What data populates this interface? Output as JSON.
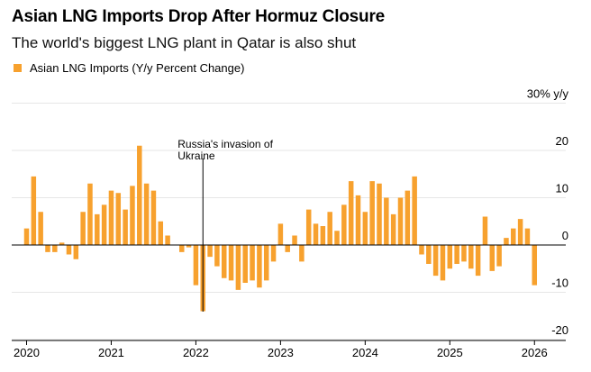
{
  "chart_data": {
    "type": "bar",
    "title": "Asian LNG Imports Drop After Hormuz Closure",
    "subtitle": "The world's biggest LNG plant in Qatar is also shut",
    "legend": [
      {
        "name": "Asian LNG Imports (Y/y Percent Change)",
        "color": "#f7a12e"
      }
    ],
    "series": [
      {
        "name": "Asian LNG Imports (Y/y Percent Change)",
        "start": "2020-01",
        "values": [
          3.5,
          14.5,
          7,
          -1.5,
          -1.5,
          0.5,
          -2,
          -3,
          7,
          13,
          6.5,
          8.5,
          11.5,
          11,
          7.5,
          12.5,
          21,
          13,
          11.5,
          5,
          2,
          0,
          -1.5,
          -0.5,
          -8.5,
          -14,
          -2.5,
          -4.5,
          -7,
          -7.5,
          -9.5,
          -8,
          -7.5,
          -9,
          -7.5,
          -3.5,
          4.5,
          -1.5,
          2,
          -3.5,
          7.5,
          4.5,
          4,
          7,
          3,
          8.5,
          13.5,
          10.5,
          7,
          13.5,
          13,
          10,
          6.5,
          10,
          11.5,
          14.5,
          -2,
          -4,
          -6.5,
          -7.5,
          -5,
          -4,
          -3.5,
          -5,
          -6.5,
          6,
          -5.5,
          -4.5,
          1.5,
          3.5,
          5.5,
          3.5,
          -8.5
        ]
      }
    ],
    "x_ticks": [
      {
        "label": "2020",
        "value": "2020-01"
      },
      {
        "label": "2021",
        "value": "2021-01"
      },
      {
        "label": "2022",
        "value": "2022-01"
      },
      {
        "label": "2023",
        "value": "2023-01"
      },
      {
        "label": "2024",
        "value": "2024-01"
      },
      {
        "label": "2025",
        "value": "2025-01"
      },
      {
        "label": "2026",
        "value": "2026-01"
      }
    ],
    "y_ticks": [
      {
        "label": "30% y/y",
        "value": 30
      },
      {
        "label": "20",
        "value": 20
      },
      {
        "label": "10",
        "value": 10
      },
      {
        "label": "0",
        "value": 0
      },
      {
        "label": "-10",
        "value": -10
      },
      {
        "label": "-20",
        "value": -20
      }
    ],
    "ylim": [
      -20,
      30
    ],
    "y_axis_position": "right",
    "grid": true,
    "annotation": {
      "lines": [
        "Russia's invasion of",
        "Ukraine"
      ],
      "at": "2022-02"
    },
    "colors": {
      "bar": "#f7a12e",
      "grid": "#e6e6e6",
      "zero_line": "#000000",
      "annotation_line": "#000000"
    }
  }
}
